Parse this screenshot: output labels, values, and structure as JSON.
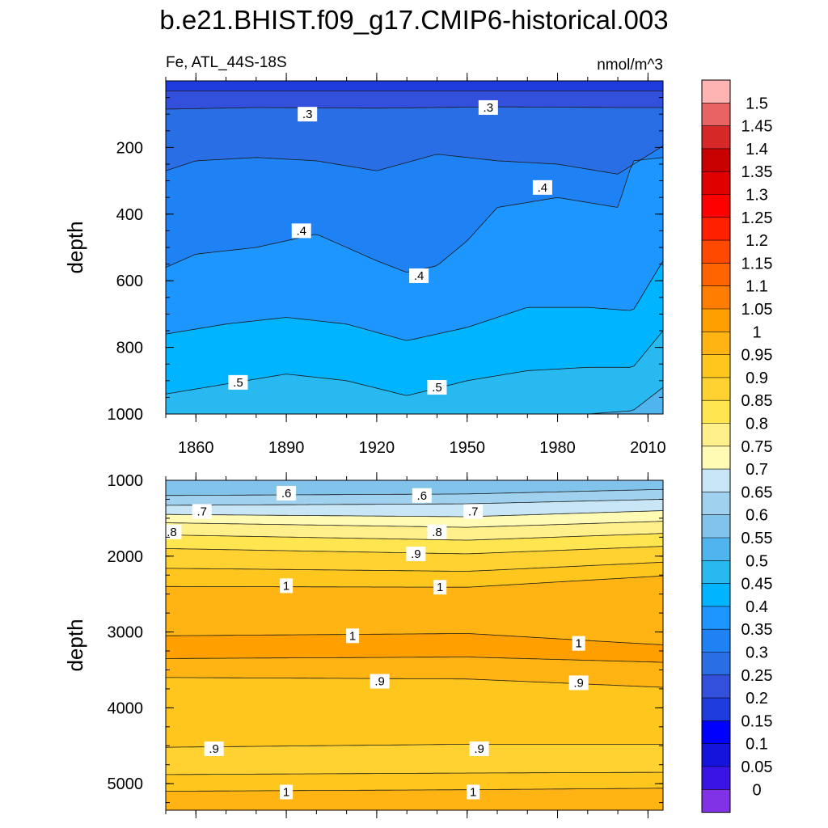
{
  "title": "b.e21.BHIST.f09_g17.CMIP6-historical.003",
  "subtitle_left": "Fe, ATL_44S-18S",
  "subtitle_right": "nmol/m^3",
  "chart_data": [
    {
      "type": "heatmap",
      "panel": "upper",
      "ylabel": "depth",
      "xlim": [
        1850,
        2015
      ],
      "ylim": [
        0,
        1000
      ],
      "y_reversed": true,
      "x_ticks": [
        "1860",
        "1890",
        "1920",
        "1950",
        "1980",
        "2010"
      ],
      "y_ticks": [
        "200",
        "400",
        "600",
        "800",
        "1000"
      ],
      "contour_levels": [
        0.2,
        0.25,
        0.3,
        0.35,
        0.4,
        0.45,
        0.5,
        0.55
      ],
      "contour_depths": [
        {
          "level": 0.2,
          "year": [
            1850,
            1900,
            1950,
            2000,
            2015
          ],
          "depth": [
            30,
            30,
            30,
            30,
            30
          ]
        },
        {
          "level": 0.25,
          "year": [
            1850,
            1880,
            1920,
            1960,
            2000,
            2015
          ],
          "depth": [
            85,
            80,
            82,
            78,
            80,
            80
          ]
        },
        {
          "level": 0.3,
          "year": [
            1850,
            1860,
            1880,
            1900,
            1920,
            1940,
            1960,
            1980,
            2000,
            2015
          ],
          "depth": [
            270,
            240,
            230,
            240,
            270,
            220,
            240,
            250,
            280,
            195
          ]
        },
        {
          "level": 0.35,
          "year": [
            1850,
            1860,
            1880,
            1900,
            1920,
            1930,
            1940,
            1950,
            1960,
            1980,
            2000,
            2005,
            2015
          ],
          "depth": [
            560,
            520,
            500,
            460,
            540,
            575,
            555,
            480,
            380,
            350,
            380,
            240,
            230
          ]
        },
        {
          "level": 0.4,
          "year": [
            1850,
            1870,
            1890,
            1910,
            1930,
            1950,
            1970,
            1990,
            2005,
            2015
          ],
          "depth": [
            760,
            730,
            710,
            730,
            780,
            740,
            680,
            680,
            690,
            540
          ]
        },
        {
          "level": 0.45,
          "year": [
            1850,
            1870,
            1890,
            1910,
            1930,
            1950,
            1970,
            1990,
            2005,
            2015
          ],
          "depth": [
            940,
            910,
            880,
            900,
            945,
            900,
            870,
            860,
            860,
            750
          ]
        },
        {
          "level": 0.5,
          "year": [
            1960,
            1990,
            2005,
            2015
          ],
          "depth": [
            1000,
            1000,
            990,
            920
          ]
        }
      ],
      "contour_labels": [
        {
          "text": ".3",
          "year": 1897,
          "depth": 100
        },
        {
          "text": ".3",
          "year": 1957,
          "depth": 80
        },
        {
          "text": ".4",
          "year": 1975,
          "depth": 320
        },
        {
          "text": ".4",
          "year": 1895,
          "depth": 450
        },
        {
          "text": ".4",
          "year": 1934,
          "depth": 585
        },
        {
          "text": ".5",
          "year": 1874,
          "depth": 905
        },
        {
          "text": ".5",
          "year": 1940,
          "depth": 920
        }
      ]
    },
    {
      "type": "heatmap",
      "panel": "lower",
      "ylabel": "depth",
      "xlim": [
        1850,
        2015
      ],
      "ylim": [
        1000,
        5350
      ],
      "y_reversed": true,
      "y_ticks": [
        "1000",
        "2000",
        "3000",
        "4000",
        "5000"
      ],
      "contour_levels": [
        0.6,
        0.65,
        0.7,
        0.75,
        0.8,
        0.85,
        0.9,
        0.95,
        1.0
      ],
      "contour_depths": [
        {
          "level": 0.6,
          "year": [
            1850,
            1950,
            2015
          ],
          "depth": [
            1200,
            1180,
            1120
          ]
        },
        {
          "level": 0.65,
          "year": [
            1850,
            1950,
            2015
          ],
          "depth": [
            1330,
            1310,
            1250
          ]
        },
        {
          "level": 0.7,
          "year": [
            1850,
            1950,
            2015
          ],
          "depth": [
            1450,
            1480,
            1400
          ]
        },
        {
          "level": 0.75,
          "year": [
            1850,
            1950,
            2015
          ],
          "depth": [
            1560,
            1620,
            1540
          ]
        },
        {
          "level": 0.8,
          "year": [
            1850,
            1950,
            2015
          ],
          "depth": [
            1720,
            1790,
            1700
          ]
        },
        {
          "level": 0.85,
          "year": [
            1850,
            1950,
            2015
          ],
          "depth": [
            1900,
            1970,
            1870
          ]
        },
        {
          "level": 0.9,
          "year": [
            1850,
            1950,
            2015
          ],
          "depth": [
            2160,
            2200,
            2080
          ]
        },
        {
          "level": 0.95,
          "year": [
            1850,
            1950,
            2015
          ],
          "depth": [
            2400,
            2410,
            2260
          ]
        },
        {
          "level": 1.0,
          "year": [
            1850,
            1950,
            2015
          ],
          "depth": [
            3050,
            3020,
            3170
          ]
        },
        {
          "level": 0.95,
          "year": [
            1850,
            1950,
            2015
          ],
          "depth": [
            3350,
            3330,
            3400
          ]
        },
        {
          "level": 0.9,
          "year": [
            1850,
            1950,
            2015
          ],
          "depth": [
            3600,
            3620,
            3730
          ]
        },
        {
          "level": 0.9,
          "year": [
            1850,
            1950,
            2015
          ],
          "depth": [
            4520,
            4480,
            4480
          ]
        },
        {
          "level": 0.95,
          "year": [
            1850,
            1950,
            2015
          ],
          "depth": [
            4880,
            4860,
            4850
          ]
        },
        {
          "level": 1.0,
          "year": [
            1850,
            1950,
            2015
          ],
          "depth": [
            5100,
            5080,
            5060
          ]
        }
      ],
      "contour_labels": [
        {
          "text": ".6",
          "year": 1890,
          "depth": 1170
        },
        {
          "text": ".6",
          "year": 1935,
          "depth": 1200
        },
        {
          "text": ".7",
          "year": 1862,
          "depth": 1410
        },
        {
          "text": ".7",
          "year": 1952,
          "depth": 1410
        },
        {
          "text": ".8",
          "year": 1852,
          "depth": 1680
        },
        {
          "text": ".8",
          "year": 1940,
          "depth": 1680
        },
        {
          "text": ".9",
          "year": 1933,
          "depth": 1970
        },
        {
          "text": "1",
          "year": 1890,
          "depth": 2390
        },
        {
          "text": "1",
          "year": 1941,
          "depth": 2410
        },
        {
          "text": "1",
          "year": 1912,
          "depth": 3050
        },
        {
          "text": "1",
          "year": 1987,
          "depth": 3150
        },
        {
          "text": ".9",
          "year": 1921,
          "depth": 3650
        },
        {
          "text": ".9",
          "year": 1987,
          "depth": 3670
        },
        {
          "text": ".9",
          "year": 1866,
          "depth": 4540
        },
        {
          "text": ".9",
          "year": 1954,
          "depth": 4540
        },
        {
          "text": "1",
          "year": 1890,
          "depth": 5110
        },
        {
          "text": "1",
          "year": 1952,
          "depth": 5110
        }
      ]
    }
  ],
  "colorbar": {
    "labels": [
      "1.5",
      "1.45",
      "1.4",
      "1.35",
      "1.3",
      "1.25",
      "1.2",
      "1.15",
      "1.1",
      "1.05",
      "1",
      "0.95",
      "0.9",
      "0.85",
      "0.8",
      "0.75",
      "0.7",
      "0.65",
      "0.6",
      "0.55",
      "0.5",
      "0.45",
      "0.4",
      "0.35",
      "0.3",
      "0.25",
      "0.2",
      "0.15",
      "0.1",
      "0.05",
      "0"
    ],
    "colors_top_to_bottom": [
      "#ffb4b4",
      "#e86464",
      "#d72828",
      "#c80000",
      "#e10000",
      "#ff0000",
      "#ff2000",
      "#ff4800",
      "#ff6400",
      "#ff7d00",
      "#ffa000",
      "#ffb414",
      "#ffc61e",
      "#ffd232",
      "#ffe650",
      "#fff08c",
      "#fffab4",
      "#c8e6f5",
      "#a0d2f0",
      "#82c3eb",
      "#50b4ee",
      "#28b9f0",
      "#00b4ff",
      "#1e96ff",
      "#1e82f5",
      "#2a6ee6",
      "#3250dc",
      "#1e3cdc",
      "#0000ff",
      "#1414dc",
      "#3a14e6",
      "#8232e6"
    ]
  },
  "fill_colors": {
    "0.15": "#1e3cdc",
    "0.2": "#3250dc",
    "0.25": "#2a6ee6",
    "0.3": "#1e82f5",
    "0.35": "#1e96ff",
    "0.4": "#00b4ff",
    "0.45": "#28b9f0",
    "0.5": "#50b4ee",
    "0.55": "#82c3eb",
    "0.6": "#a0d2f0",
    "0.65": "#c8e6f5",
    "0.7": "#fffab4",
    "0.75": "#fff08c",
    "0.8": "#ffe650",
    "0.85": "#ffd232",
    "0.9": "#ffc61e",
    "0.95": "#ffb414",
    "1.0": "#ffa000"
  }
}
